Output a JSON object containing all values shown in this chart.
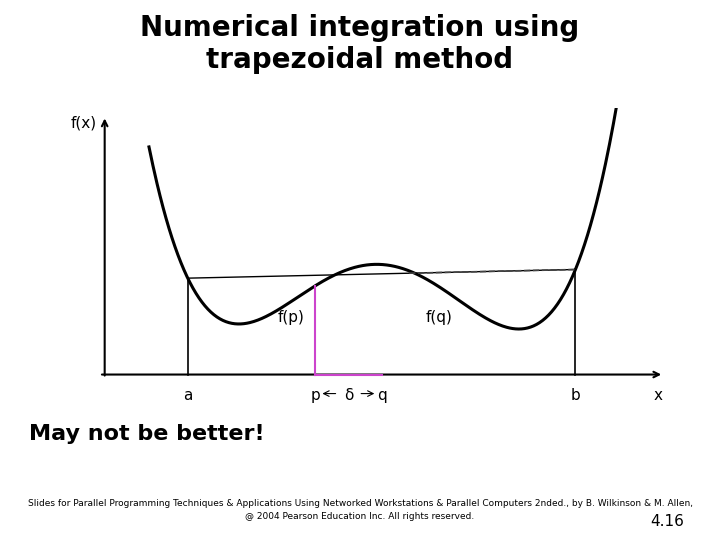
{
  "title_line1": "Numerical integration using",
  "title_line2": "trapezoidal method",
  "title_fontsize": 20,
  "title_fontweight": "bold",
  "ylabel_text": "f(x)",
  "xlabel_text": "x",
  "may_not_text": "May not be better!",
  "may_not_fontsize": 16,
  "footer_line1": "Slides for Parallel Programming Techniques & Applications Using Networked Workstations & Parallel Computers 2nded., by B. Wilkinson & M. Allen,",
  "footer_line2": "@ 2004 Pearson Education Inc. All rights reserved.",
  "footer_fontsize": 6.5,
  "page_num": "4.16",
  "page_num_fontsize": 11,
  "axis_label_a": "a",
  "axis_label_p": "p",
  "axis_label_delta": "δ",
  "axis_label_q": "q",
  "axis_label_b": "b",
  "fp_label": "f(p)",
  "fq_label": "f(q)",
  "background_color": "#ffffff",
  "curve_color": "#000000",
  "trapezoid_line_color": "#cc44cc",
  "straight_line_color": "#000000",
  "dashed_line_color": "#444444",
  "axes_color": "#000000"
}
